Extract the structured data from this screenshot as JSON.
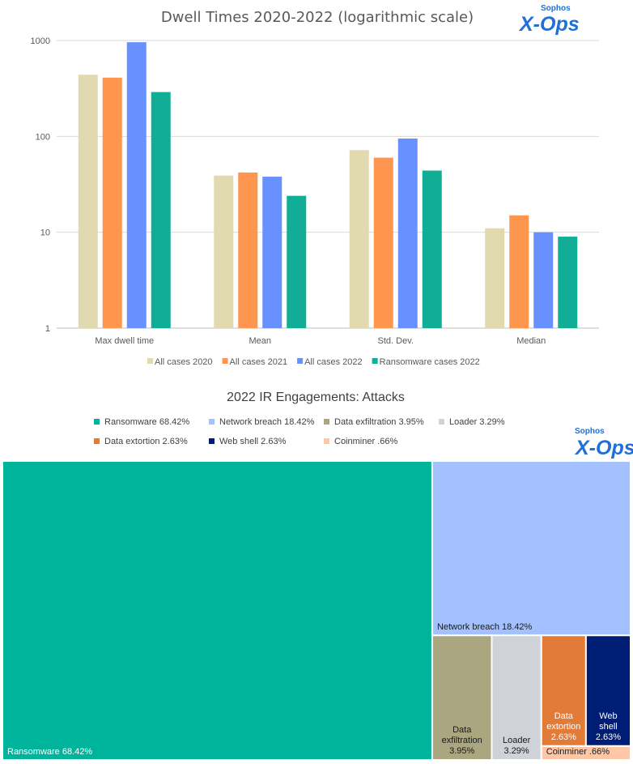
{
  "logo": {
    "brand_small": "Sophos",
    "brand_big": "X-Ops",
    "color": "#1f6fd8"
  },
  "chart_data": [
    {
      "type": "bar",
      "title": "Dwell Times 2020-2022 (logarithmic scale)",
      "categories": [
        "Max dwell time",
        "Mean",
        "Std. Dev.",
        "Median"
      ],
      "series": [
        {
          "name": "All cases 2020",
          "color": "#e1d9b0",
          "values": [
            440,
            39,
            72,
            11
          ]
        },
        {
          "name": "All cases 2021",
          "color": "#ff9650",
          "values": [
            410,
            42,
            60,
            15
          ]
        },
        {
          "name": "All cases 2022",
          "color": "#6890ff",
          "values": [
            960,
            38,
            95,
            10
          ]
        },
        {
          "name": "Ransomware cases 2022",
          "color": "#12ad96",
          "values": [
            290,
            24,
            44,
            9
          ]
        }
      ],
      "y_scale": "log",
      "ylim": [
        1,
        1000
      ],
      "y_ticks": [
        1,
        10,
        100,
        1000
      ],
      "y_tick_labels": [
        "1",
        "10",
        "100",
        "1000"
      ],
      "grid": true,
      "legend": "bottom"
    },
    {
      "type": "treemap",
      "title": "2022 IR Engagements: Attacks",
      "items": [
        {
          "name": "Ransomware",
          "label": "Ransomware 68.42%",
          "legend": "Ransomware 68.42%",
          "value": 68.42,
          "color": "#00b39b",
          "text_color": "#ffffff"
        },
        {
          "name": "Network breach",
          "label": "Network breach 18.42%",
          "legend": "Network breach 18.42%",
          "value": 18.42,
          "color": "#a3c1ff",
          "text_color": "#1a1a1a"
        },
        {
          "name": "Data exfiltration",
          "label": "Data exfiltration 3.95%",
          "legend": "Data exfiltration 3.95%",
          "value": 3.95,
          "color": "#aaa67f",
          "text_color": "#1a1a1a"
        },
        {
          "name": "Loader",
          "label": "Loader 3.29%",
          "legend": "Loader 3.29%",
          "value": 3.29,
          "color": "#cfd2d8",
          "text_color": "#1a1a1a"
        },
        {
          "name": "Data extortion",
          "label": "Data extortion 2.63%",
          "legend": "Data extortion 2.63%",
          "value": 2.63,
          "color": "#e27a38",
          "text_color": "#ffffff"
        },
        {
          "name": "Web shell",
          "label": "Web shell 2.63%",
          "legend": "Web shell 2.63%",
          "value": 2.63,
          "color": "#001d75",
          "text_color": "#ffffff"
        },
        {
          "name": "Coinminer",
          "label": "Coinminer .66%",
          "legend": "Coinminer .66%",
          "value": 0.66,
          "color": "#ffc7a6",
          "text_color": "#1a1a1a"
        }
      ],
      "legend": "top"
    }
  ]
}
